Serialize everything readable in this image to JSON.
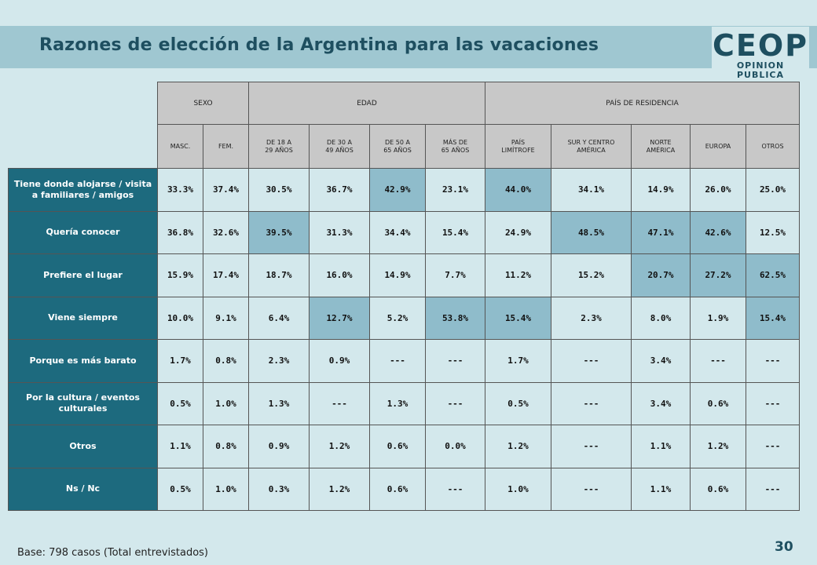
{
  "title": "Razones de elección de la Argentina para las vacaciones",
  "logo": {
    "main": "CEOP",
    "sub": "OPINION PUBLICA"
  },
  "footer": "Base: 798 casos (Total entrevistados)",
  "page_number": "30",
  "colors": {
    "header_band": "#9fc7d1",
    "row_label_bg": "#1d6a7e",
    "cell_bg": "#d3e8ec",
    "highlight_bg": "#8fbccb",
    "column_header_bg": "#c8c8c8"
  },
  "chart_data": {
    "type": "table",
    "groups": [
      {
        "label": "SEXO",
        "span": 2
      },
      {
        "label": "EDAD",
        "span": 4
      },
      {
        "label": "PAÍS DE RESIDENCIA",
        "span": 5
      }
    ],
    "columns": [
      "MASC.",
      "FEM.",
      "DE 18 A\n29 AÑOS",
      "DE 30 A\n49 AÑOS",
      "DE 50 A\n65 AÑOS",
      "MÁS DE\n65 AÑOS",
      "PAÍS\nLIMÍTROFE",
      "SUR Y CENTRO\nAMÉRICA",
      "NORTE\nAMÉRICA",
      "EUROPA",
      "OTROS"
    ],
    "rows": [
      {
        "label": "Tiene donde alojarse / visita a familiares / amigos",
        "values": [
          "33.3%",
          "37.4%",
          "30.5%",
          "36.7%",
          "42.9%",
          "23.1%",
          "44.0%",
          "34.1%",
          "14.9%",
          "26.0%",
          "25.0%"
        ],
        "highlight": [
          4,
          6
        ]
      },
      {
        "label": "Quería conocer",
        "values": [
          "36.8%",
          "32.6%",
          "39.5%",
          "31.3%",
          "34.4%",
          "15.4%",
          "24.9%",
          "48.5%",
          "47.1%",
          "42.6%",
          "12.5%"
        ],
        "highlight": [
          2,
          7,
          8,
          9
        ]
      },
      {
        "label": "Prefiere el lugar",
        "values": [
          "15.9%",
          "17.4%",
          "18.7%",
          "16.0%",
          "14.9%",
          "7.7%",
          "11.2%",
          "15.2%",
          "20.7%",
          "27.2%",
          "62.5%"
        ],
        "highlight": [
          8,
          9,
          10
        ]
      },
      {
        "label": "Viene siempre",
        "values": [
          "10.0%",
          "9.1%",
          "6.4%",
          "12.7%",
          "5.2%",
          "53.8%",
          "15.4%",
          "2.3%",
          "8.0%",
          "1.9%",
          "15.4%"
        ],
        "highlight": [
          3,
          5,
          6,
          10
        ]
      },
      {
        "label": "Porque es más barato",
        "values": [
          "1.7%",
          "0.8%",
          "2.3%",
          "0.9%",
          "---",
          "---",
          "1.7%",
          "---",
          "3.4%",
          "---",
          "---"
        ],
        "highlight": []
      },
      {
        "label": "Por la cultura / eventos culturales",
        "values": [
          "0.5%",
          "1.0%",
          "1.3%",
          "---",
          "1.3%",
          "---",
          "0.5%",
          "---",
          "3.4%",
          "0.6%",
          "---"
        ],
        "highlight": []
      },
      {
        "label": "Otros",
        "values": [
          "1.1%",
          "0.8%",
          "0.9%",
          "1.2%",
          "0.6%",
          "0.0%",
          "1.2%",
          "---",
          "1.1%",
          "1.2%",
          "---"
        ],
        "highlight": []
      },
      {
        "label": "Ns / Nc",
        "values": [
          "0.5%",
          "1.0%",
          "0.3%",
          "1.2%",
          "0.6%",
          "---",
          "1.0%",
          "---",
          "1.1%",
          "0.6%",
          "---"
        ],
        "highlight": []
      }
    ]
  }
}
